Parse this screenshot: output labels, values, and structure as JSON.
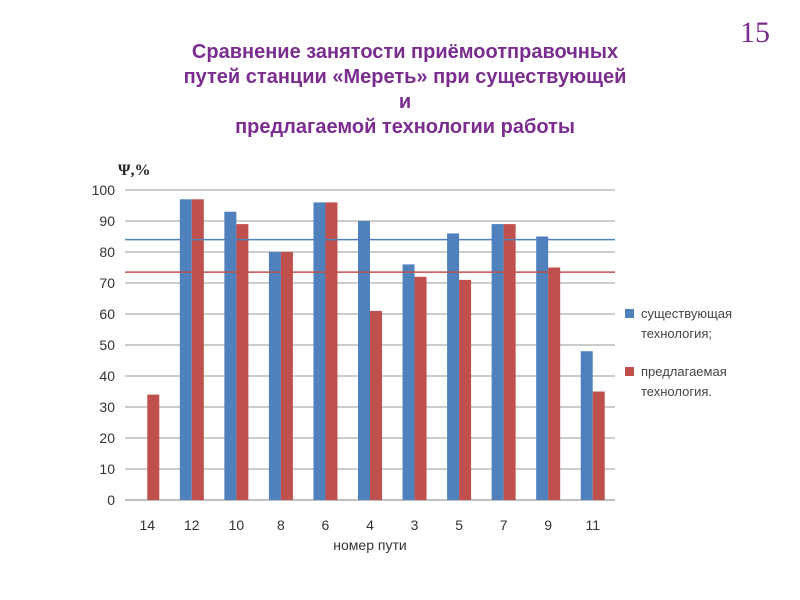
{
  "slide": {
    "number": "15"
  },
  "title_lines": [
    "Сравнение занятости приёмоотправочных",
    "путей станции «Мереть» при существующей",
    "и",
    "предлагаемой технологии работы"
  ],
  "chart_data": {
    "type": "bar",
    "ylabel": "Ψ,%",
    "xlabel": "номер пути",
    "ylim": [
      0,
      100
    ],
    "yticks": [
      0,
      10,
      20,
      30,
      40,
      50,
      60,
      70,
      80,
      90,
      100
    ],
    "grid": true,
    "legend_position": "right",
    "categories": [
      "14",
      "12",
      "10",
      "8",
      "6",
      "4",
      "3",
      "5",
      "7",
      "9",
      "11"
    ],
    "series": [
      {
        "name": "существующая технология;",
        "color": "#4f81bd",
        "values": [
          null,
          97,
          93,
          80,
          96,
          90,
          76,
          86,
          89,
          85,
          48
        ]
      },
      {
        "name": "предлагаемая технология.",
        "color": "#c0504d",
        "values": [
          34,
          97,
          89,
          80,
          96,
          61,
          72,
          71,
          89,
          75,
          35
        ]
      }
    ],
    "reference_lines": [
      {
        "value": 84,
        "color": "#4f81bd"
      },
      {
        "value": 73.5,
        "color": "#c0504d"
      }
    ],
    "legend": [
      {
        "lines": [
          "существующая",
          "технология;"
        ],
        "color": "#4f81bd"
      },
      {
        "lines": [
          "предлагаемая",
          "технология."
        ],
        "color": "#c0504d"
      }
    ]
  }
}
